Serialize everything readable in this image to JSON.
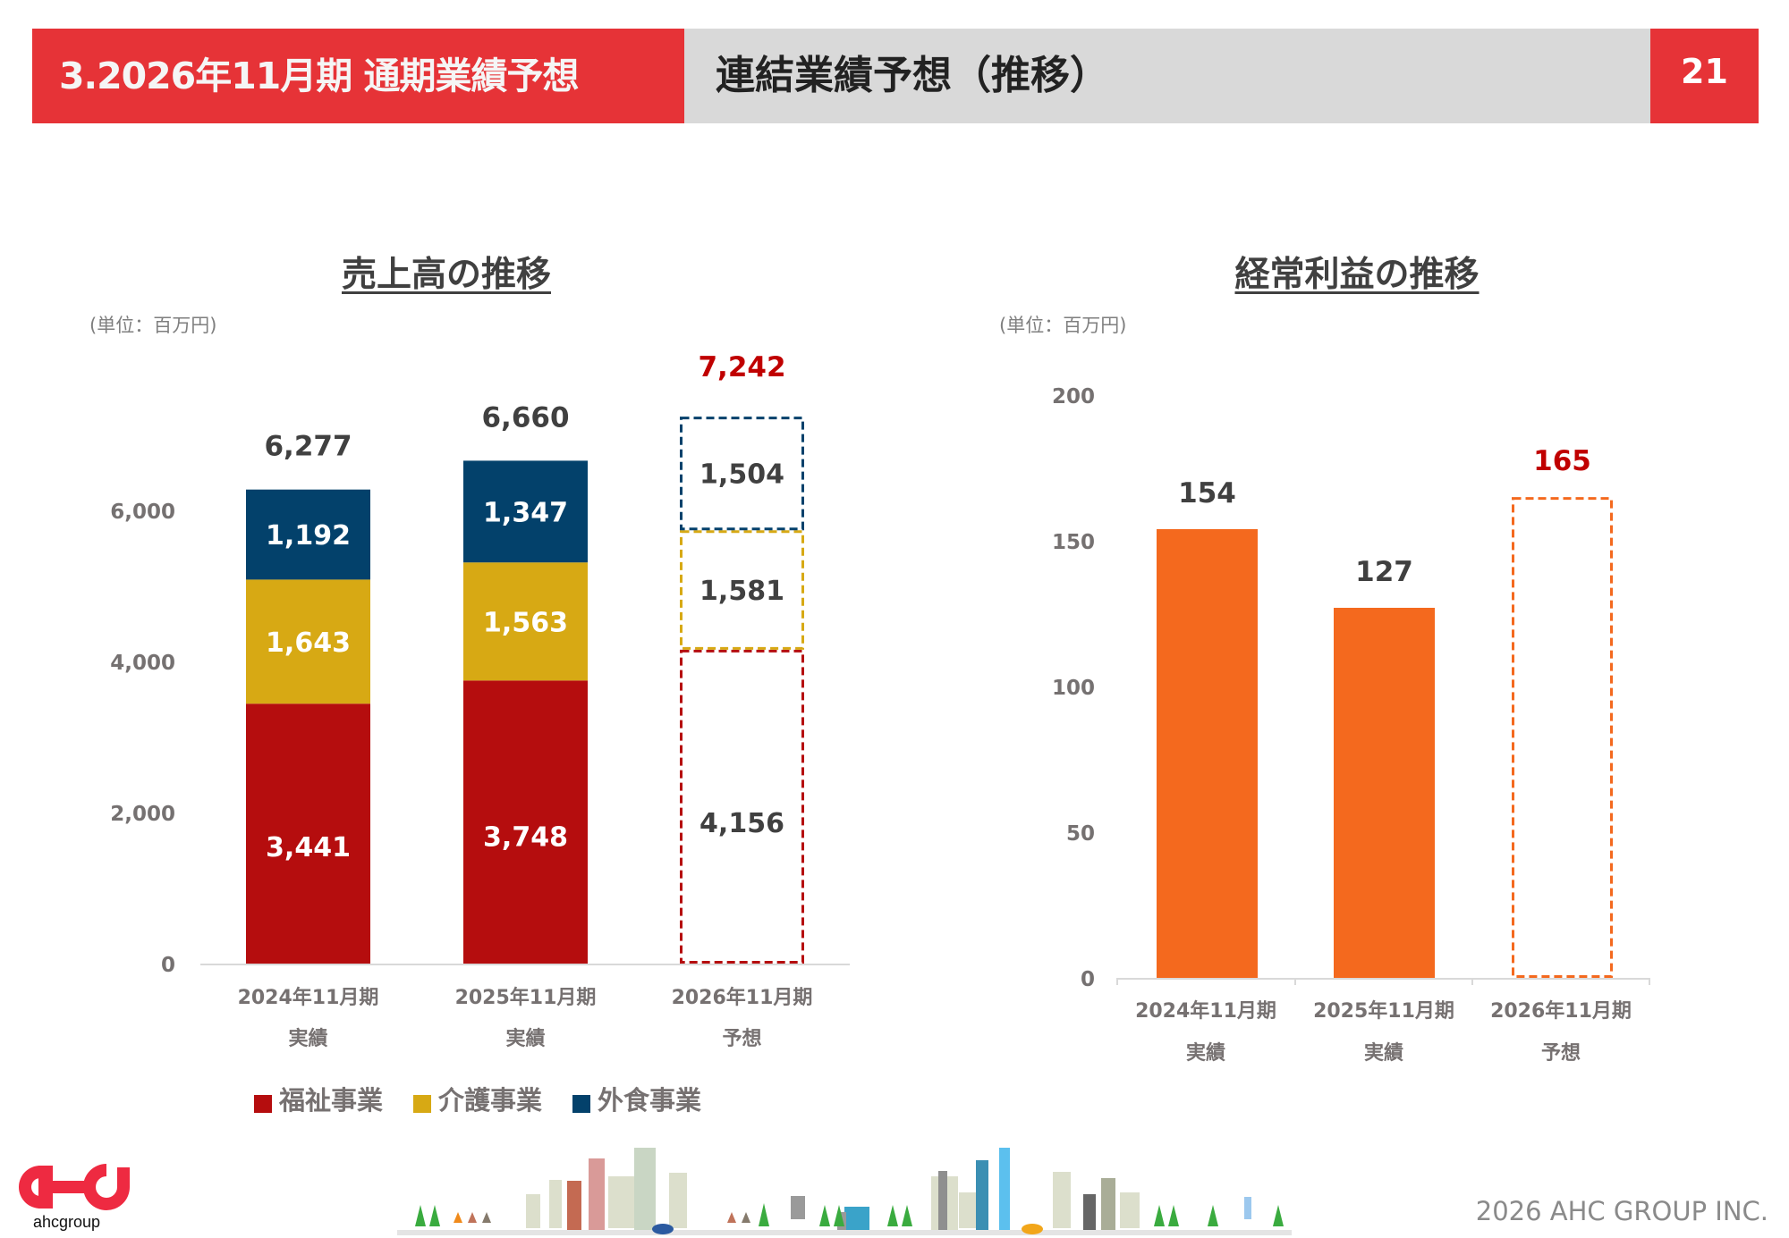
{
  "header": {
    "section_title": "3.2026年11月期 通期業績予想",
    "page_title": "連結業績予想（推移）",
    "page_number": "21",
    "accent_color": "#e63337",
    "bar_color": "#d9d9d9"
  },
  "chart_data": [
    {
      "type": "bar",
      "stacked": true,
      "title": "売上高の推移",
      "unit_label": "(単位：百万円)",
      "categories": [
        "2024年11月期",
        "2025年11月期",
        "2026年11月期"
      ],
      "category_sublabels": [
        "実績",
        "実績",
        "予想"
      ],
      "forecast_flags": [
        false,
        false,
        true
      ],
      "ylim": [
        0,
        7242
      ],
      "yticks": [
        0,
        2000,
        4000,
        6000
      ],
      "ytick_labels": [
        "0",
        "2,000",
        "4,000",
        "6,000"
      ],
      "series": [
        {
          "name": "福祉事業",
          "color": "#b50d0e",
          "values": [
            3441,
            3748,
            4156
          ],
          "labels": [
            "3,441",
            "3,748",
            "4,156"
          ]
        },
        {
          "name": "介護事業",
          "color": "#d7a914",
          "values": [
            1643,
            1563,
            1581
          ],
          "labels": [
            "1,643",
            "1,563",
            "1,581"
          ]
        },
        {
          "name": "外食事業",
          "color": "#03416b",
          "values": [
            1192,
            1347,
            1504
          ],
          "labels": [
            "1,192",
            "1,347",
            "1,504"
          ]
        }
      ],
      "totals": [
        6277,
        6660,
        7242
      ],
      "total_labels": [
        "6,277",
        "6,660",
        "7,242"
      ],
      "forecast_total_color": "#c00000",
      "legend": [
        "福祉事業",
        "介護事業",
        "外食事業"
      ],
      "legend_position": "bottom"
    },
    {
      "type": "bar",
      "title": "経常利益の推移",
      "unit_label": "(単位：百万円)",
      "categories": [
        "2024年11月期",
        "2025年11月期",
        "2026年11月期"
      ],
      "category_sublabels": [
        "実績",
        "実績",
        "予想"
      ],
      "forecast_flags": [
        false,
        false,
        true
      ],
      "ylim": [
        0,
        200
      ],
      "yticks": [
        0,
        50,
        100,
        150,
        200
      ],
      "ytick_labels": [
        "0",
        "50",
        "100",
        "150",
        "200"
      ],
      "values": [
        154,
        127,
        165
      ],
      "value_labels": [
        "154",
        "127",
        "165"
      ],
      "color": "#f4691e",
      "forecast_label_color": "#c00000"
    }
  ],
  "footer": {
    "logo_text": "ahcgroup",
    "logo_color": "#ee2a41",
    "copyright": "2026 AHC GROUP INC."
  }
}
